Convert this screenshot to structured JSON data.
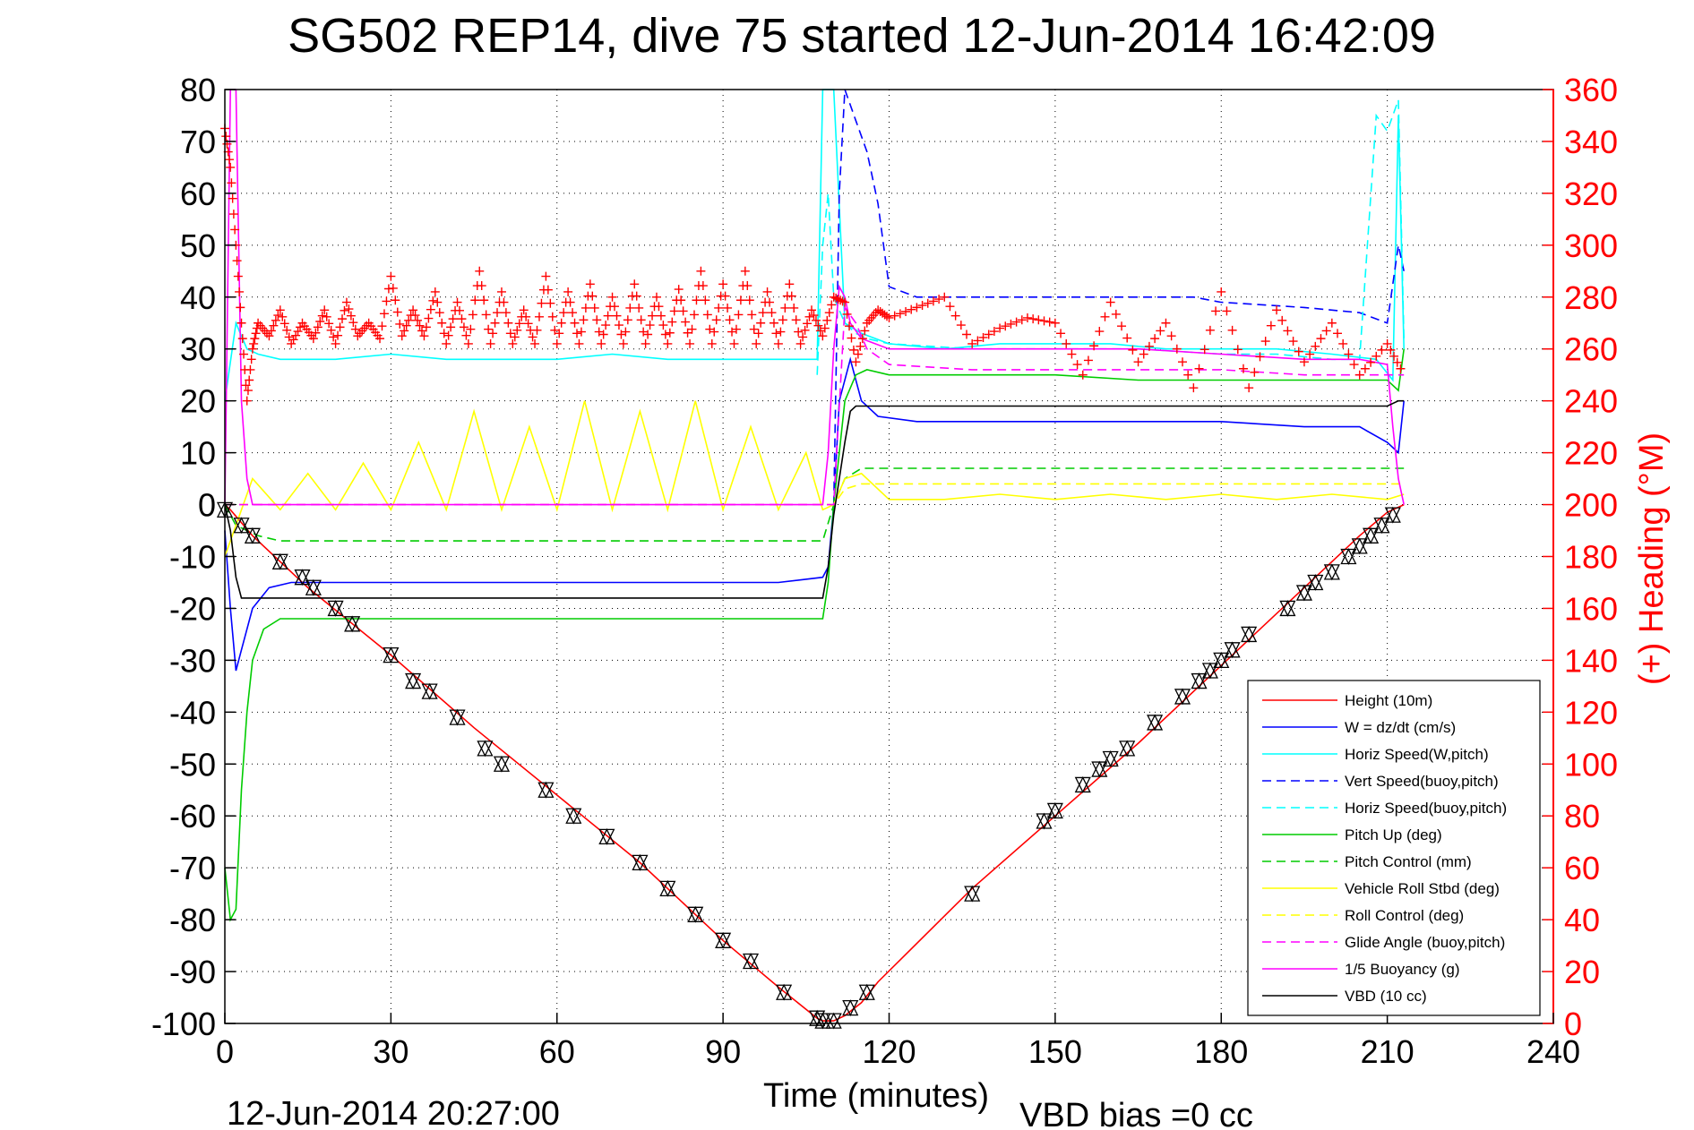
{
  "chart_data": {
    "type": "line",
    "title": "SG502 REP14, dive 75 started 12-Jun-2014 16:42:09",
    "xlabel": "Time (minutes)",
    "ylabel_right": "(+) Heading (°M)",
    "footer_left": "12-Jun-2014 20:27:00",
    "footer_right": "VBD bias =0 cc",
    "xlim": [
      0,
      240
    ],
    "ylim_left": [
      -100,
      80
    ],
    "ylim_right": [
      0,
      360
    ],
    "grid": true,
    "legend_position": "bottom-right",
    "x_ticks": [
      "0",
      "30",
      "60",
      "90",
      "120",
      "150",
      "180",
      "210",
      "240"
    ],
    "y_ticks_left": [
      "80",
      "70",
      "60",
      "50",
      "40",
      "30",
      "20",
      "10",
      "0",
      "-10",
      "-20",
      "-30",
      "-40",
      "-50",
      "-60",
      "-70",
      "-80",
      "-90",
      "-100"
    ],
    "y_ticks_right": [
      "360",
      "340",
      "320",
      "300",
      "280",
      "260",
      "240",
      "220",
      "200",
      "180",
      "160",
      "140",
      "120",
      "100",
      "80",
      "60",
      "40",
      "20",
      "0"
    ],
    "legend": [
      {
        "label": "Height (10m)",
        "color": "#ff0000",
        "dash": "solid"
      },
      {
        "label": "W = dz/dt (cm/s)",
        "color": "#0000ff",
        "dash": "solid"
      },
      {
        "label": "Horiz Speed(W,pitch)",
        "color": "#00ffff",
        "dash": "solid"
      },
      {
        "label": "Vert Speed(buoy,pitch)",
        "color": "#0000ff",
        "dash": "dashed"
      },
      {
        "label": "Horiz Speed(buoy,pitch)",
        "color": "#00ffff",
        "dash": "dashed"
      },
      {
        "label": "Pitch Up (deg)",
        "color": "#00cc00",
        "dash": "solid"
      },
      {
        "label": "Pitch Control (mm)",
        "color": "#00cc00",
        "dash": "dashed"
      },
      {
        "label": "Vehicle Roll Stbd (deg)",
        "color": "#ffff00",
        "dash": "solid"
      },
      {
        "label": "Roll Control (deg)",
        "color": "#ffff00",
        "dash": "dashed"
      },
      {
        "label": "Glide Angle (buoy,pitch)",
        "color": "#ff00ff",
        "dash": "dashed"
      },
      {
        "label": "1/5 Buoyancy (g)",
        "color": "#ff00ff",
        "dash": "solid"
      },
      {
        "label": "VBD (10 cc)",
        "color": "#000000",
        "dash": "solid"
      }
    ],
    "series": [
      {
        "name": "Height (10m)",
        "axis": "left",
        "color": "#ff0000",
        "x": [
          0,
          1,
          5,
          15,
          30,
          45,
          60,
          75,
          90,
          100,
          107,
          108,
          110,
          112,
          115,
          118,
          135,
          150,
          165,
          180,
          195,
          205,
          210,
          213
        ],
        "y": [
          0,
          -1,
          -6,
          -16,
          -29,
          -43,
          -56,
          -69,
          -84,
          -93,
          -99,
          -99.5,
          -99.5,
          -98.5,
          -96,
          -92,
          -74,
          -60,
          -46,
          -31,
          -16,
          -6,
          -1.5,
          0
        ]
      },
      {
        "name": "W = dz/dt (cm/s)",
        "axis": "left",
        "color": "#0000ff",
        "x": [
          0,
          1,
          2,
          3,
          5,
          8,
          12,
          20,
          30,
          40,
          50,
          60,
          70,
          80,
          90,
          100,
          108,
          109,
          110,
          111,
          113,
          115,
          118,
          125,
          135,
          150,
          165,
          180,
          195,
          205,
          210,
          212,
          213
        ],
        "y": [
          -5,
          -20,
          -32,
          -28,
          -20,
          -16,
          -15,
          -15,
          -15,
          -15,
          -15,
          -15,
          -15,
          -15,
          -15,
          -15,
          -14,
          -12,
          0,
          20,
          28,
          20,
          17,
          16,
          16,
          16,
          16,
          16,
          15,
          15,
          12,
          10,
          20
        ]
      },
      {
        "name": "Horiz Speed(W,pitch)",
        "axis": "left",
        "color": "#00ffff",
        "x": [
          0,
          2,
          4,
          6,
          10,
          20,
          30,
          40,
          50,
          60,
          70,
          80,
          90,
          100,
          107,
          108,
          110,
          112,
          115,
          120,
          130,
          140,
          150,
          160,
          170,
          180,
          190,
          200,
          208,
          211,
          212,
          213
        ],
        "y": [
          20,
          35,
          30,
          29,
          28,
          28,
          29,
          28,
          28,
          28,
          29,
          28,
          28,
          28,
          28,
          80,
          80,
          35,
          33,
          31,
          30,
          31,
          31,
          31,
          30,
          30,
          30,
          29,
          28,
          24,
          75,
          30
        ]
      },
      {
        "name": "Vert Speed(buoy,pitch)",
        "axis": "left",
        "color": "#0000ff",
        "x": [
          110,
          111,
          112,
          114,
          116,
          118,
          120,
          125,
          135,
          150,
          165,
          175,
          180,
          195,
          205,
          210,
          212,
          213
        ],
        "y": [
          0,
          60,
          80,
          74,
          68,
          58,
          42,
          40,
          40,
          40,
          40,
          40,
          39,
          38,
          37,
          35,
          50,
          45
        ]
      },
      {
        "name": "Horiz Speed(buoy,pitch)",
        "axis": "left",
        "color": "#00ffff",
        "x": [
          107,
          108,
          109,
          110,
          112,
          114,
          116,
          120,
          135,
          150,
          165,
          180,
          190,
          200,
          205,
          208,
          210,
          212,
          213
        ],
        "y": [
          25,
          50,
          60,
          40,
          35,
          33,
          32,
          31,
          30,
          30,
          30,
          29,
          29,
          28,
          28,
          75,
          72,
          78,
          32
        ]
      },
      {
        "name": "Pitch Up (deg)",
        "axis": "left",
        "color": "#00cc00",
        "x": [
          0,
          1,
          2,
          3,
          4,
          5,
          7,
          10,
          15,
          20,
          30,
          40,
          50,
          60,
          70,
          80,
          90,
          100,
          108,
          109,
          110,
          112,
          114,
          116,
          120,
          135,
          150,
          165,
          180,
          195,
          205,
          210,
          212,
          213
        ],
        "y": [
          -70,
          -80,
          -78,
          -55,
          -40,
          -30,
          -24,
          -22,
          -22,
          -22,
          -22,
          -22,
          -22,
          -22,
          -22,
          -22,
          -22,
          -22,
          -22,
          -15,
          0,
          20,
          25,
          26,
          25,
          25,
          25,
          24,
          24,
          24,
          24,
          24,
          22,
          30
        ]
      },
      {
        "name": "Pitch Control (mm)",
        "axis": "left",
        "color": "#00cc00",
        "x": [
          0,
          2,
          4,
          6,
          10,
          30,
          60,
          90,
          108,
          110,
          112,
          115,
          120,
          150,
          180,
          200,
          210,
          213
        ],
        "y": [
          0,
          -4,
          -5,
          -6,
          -7,
          -7,
          -7,
          -7,
          -7,
          0,
          5,
          7,
          7,
          7,
          7,
          7,
          7,
          7
        ]
      },
      {
        "name": "Vehicle Roll Stbd (deg)",
        "axis": "left",
        "color": "#ffff00",
        "x": [
          0,
          5,
          10,
          15,
          20,
          25,
          30,
          35,
          40,
          45,
          50,
          55,
          60,
          65,
          70,
          75,
          80,
          85,
          90,
          95,
          100,
          105,
          108,
          110,
          112,
          115,
          120,
          130,
          140,
          150,
          160,
          170,
          180,
          190,
          200,
          210,
          213
        ],
        "y": [
          -10,
          5,
          -1,
          6,
          -1,
          8,
          -1,
          12,
          -1,
          18,
          -1,
          15,
          -1,
          20,
          -1,
          18,
          -1,
          20,
          -1,
          15,
          -1,
          10,
          -1,
          0,
          5,
          6,
          1,
          1,
          2,
          1,
          2,
          1,
          2,
          1,
          2,
          1,
          2
        ]
      },
      {
        "name": "Roll Control (deg)",
        "axis": "left",
        "color": "#ffff00",
        "x": [
          0,
          5,
          10,
          20,
          30,
          40,
          50,
          60,
          70,
          80,
          90,
          100,
          108,
          110,
          112,
          115,
          120,
          135,
          150,
          165,
          180,
          195,
          205,
          210,
          213
        ],
        "y": [
          0,
          0,
          0,
          0,
          0,
          0,
          0,
          0,
          0,
          0,
          0,
          0,
          0,
          0,
          3,
          4,
          4,
          4,
          4,
          4,
          4,
          4,
          4,
          4,
          4
        ]
      },
      {
        "name": "Glide Angle (buoy,pitch)",
        "axis": "left",
        "color": "#ff00ff",
        "x": [
          0,
          20,
          40,
          60,
          80,
          100,
          108,
          110,
          112,
          114,
          116,
          120,
          135,
          150,
          165,
          180,
          195,
          205,
          210,
          213
        ],
        "y": [
          0,
          0,
          0,
          0,
          0,
          0,
          0,
          0,
          38,
          35,
          30,
          27,
          26,
          26,
          26,
          26,
          25,
          25,
          25,
          25
        ]
      },
      {
        "name": "1/5 Buoyancy (g)",
        "axis": "left",
        "color": "#ff00ff",
        "x": [
          0,
          1,
          2,
          3,
          4,
          5,
          6,
          10,
          20,
          40,
          60,
          80,
          100,
          108,
          109,
          110,
          111,
          112,
          113,
          115,
          120,
          135,
          150,
          165,
          180,
          195,
          205,
          210,
          211,
          212,
          213
        ],
        "y": [
          0,
          80,
          80,
          20,
          5,
          0,
          0,
          0,
          0,
          0,
          0,
          0,
          0,
          0,
          10,
          30,
          42,
          40,
          35,
          32,
          30,
          30,
          30,
          30,
          29,
          28,
          28,
          27,
          15,
          5,
          0
        ]
      },
      {
        "name": "VBD (10 cc)",
        "axis": "left",
        "color": "#000000",
        "x": [
          0,
          1,
          2,
          3,
          4,
          108,
          109,
          110,
          111,
          112,
          113,
          114,
          200,
          210,
          212,
          213
        ],
        "y": [
          0,
          -5,
          -14,
          -18,
          -18,
          -18,
          -12,
          -2,
          5,
          12,
          18,
          19,
          19,
          19,
          20,
          20
        ]
      },
      {
        "name": "Heading",
        "axis": "right",
        "color": "#ff0000",
        "x": [
          0,
          1,
          2,
          3,
          4,
          5,
          6,
          8,
          10,
          12,
          14,
          16,
          18,
          20,
          22,
          24,
          26,
          28,
          30,
          32,
          34,
          36,
          38,
          40,
          42,
          44,
          46,
          48,
          50,
          52,
          54,
          56,
          58,
          60,
          62,
          64,
          66,
          68,
          70,
          72,
          74,
          76,
          78,
          80,
          82,
          84,
          86,
          88,
          90,
          92,
          94,
          96,
          98,
          100,
          102,
          104,
          106,
          108,
          110,
          112,
          114,
          116,
          118,
          120,
          125,
          130,
          135,
          140,
          145,
          150,
          155,
          160,
          165,
          170,
          175,
          180,
          185,
          190,
          195,
          200,
          205,
          210,
          213
        ],
        "y": [
          345,
          330,
          300,
          270,
          240,
          260,
          270,
          265,
          275,
          262,
          270,
          264,
          275,
          262,
          278,
          265,
          270,
          264,
          288,
          265,
          275,
          265,
          282,
          262,
          278,
          262,
          290,
          262,
          282,
          262,
          275,
          262,
          288,
          262,
          282,
          262,
          285,
          262,
          280,
          262,
          285,
          262,
          280,
          262,
          283,
          262,
          290,
          262,
          285,
          262,
          290,
          262,
          282,
          262,
          285,
          262,
          275,
          265,
          280,
          278,
          255,
          270,
          275,
          272,
          276,
          280,
          262,
          268,
          272,
          270,
          250,
          278,
          255,
          270,
          245,
          282,
          245,
          275,
          255,
          270,
          250,
          262,
          250
        ]
      }
    ],
    "depth_markers": {
      "x": [
        0,
        3,
        5,
        10,
        14,
        16,
        20,
        23,
        30,
        34,
        37,
        42,
        47,
        50,
        58,
        63,
        69,
        75,
        80,
        85,
        90,
        95,
        101,
        107,
        108,
        110,
        113,
        116,
        135,
        148,
        150,
        155,
        158,
        160,
        163,
        168,
        173,
        176,
        178,
        180,
        182,
        185,
        192,
        195,
        197,
        200,
        203,
        205,
        207,
        209,
        211
      ],
      "y": [
        -1,
        -4,
        -6,
        -11,
        -14,
        -16,
        -20,
        -23,
        -29,
        -34,
        -36,
        -41,
        -47,
        -50,
        -55,
        -60,
        -64,
        -69,
        -74,
        -79,
        -84,
        -88,
        -94,
        -99,
        -99.5,
        -99.5,
        -97,
        -94,
        -75,
        -61,
        -59,
        -54,
        -51,
        -49,
        -47,
        -42,
        -37,
        -34,
        -32,
        -30,
        -28,
        -25,
        -20,
        -17,
        -15,
        -13,
        -10,
        -8,
        -6,
        -4,
        -2
      ]
    }
  }
}
